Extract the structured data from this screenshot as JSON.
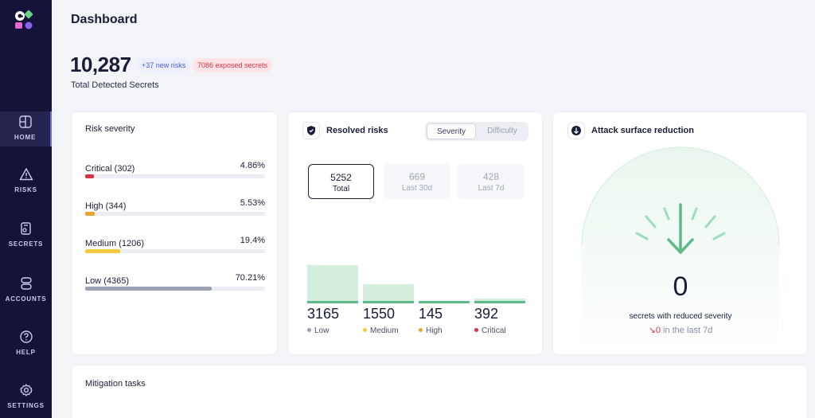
{
  "sidebar": {
    "items": [
      {
        "label": "HOME",
        "icon": "layout-icon"
      },
      {
        "label": "RISKS",
        "icon": "warning-icon"
      },
      {
        "label": "SECRETS",
        "icon": "key-icon"
      },
      {
        "label": "ACCOUNTS",
        "icon": "accounts-icon"
      },
      {
        "label": "HELP",
        "icon": "help-icon"
      },
      {
        "label": "SETTINGS",
        "icon": "gear-icon"
      }
    ]
  },
  "header": {
    "title": "Dashboard",
    "total": "10,287",
    "new_risks": "+37 new risks",
    "exposed": "7086 exposed secrets",
    "total_label": "Total Detected Secrets"
  },
  "risk_severity": {
    "title": "Risk severity",
    "rows": [
      {
        "name": "Critical (302)",
        "pct": "4.86%",
        "fraction": 0.0486,
        "color": "#d6334a"
      },
      {
        "name": "High (344)",
        "pct": "5.53%",
        "fraction": 0.0553,
        "color": "#f0a030"
      },
      {
        "name": "Medium (1206)",
        "pct": "19.4%",
        "fraction": 0.194,
        "color": "#f5c842"
      },
      {
        "name": "Low (4365)",
        "pct": "70.21%",
        "fraction": 0.7021,
        "color": "#9ca1b3"
      }
    ]
  },
  "resolved": {
    "title": "Resolved risks",
    "toggle": [
      "Severity",
      "Difficulty"
    ],
    "stats": [
      {
        "value": "5252",
        "label": "Total"
      },
      {
        "value": "669",
        "label": "Last 30d"
      },
      {
        "value": "428",
        "label": "Last 7d"
      }
    ],
    "bars": [
      {
        "value": "3165",
        "label": "Low",
        "color": "#9ca1b3"
      },
      {
        "value": "1550",
        "label": "Medium",
        "color": "#f5c842"
      },
      {
        "value": "145",
        "label": "High",
        "color": "#f0a030"
      },
      {
        "value": "392",
        "label": "Critical",
        "color": "#d6334a"
      }
    ]
  },
  "attack": {
    "title": "Attack surface reduction",
    "value": "0",
    "label": "secrets with reduced severity",
    "sub_value": "0",
    "sub_text": " in the last 7d"
  },
  "mitigation": {
    "title": "Mitigation tasks"
  }
}
